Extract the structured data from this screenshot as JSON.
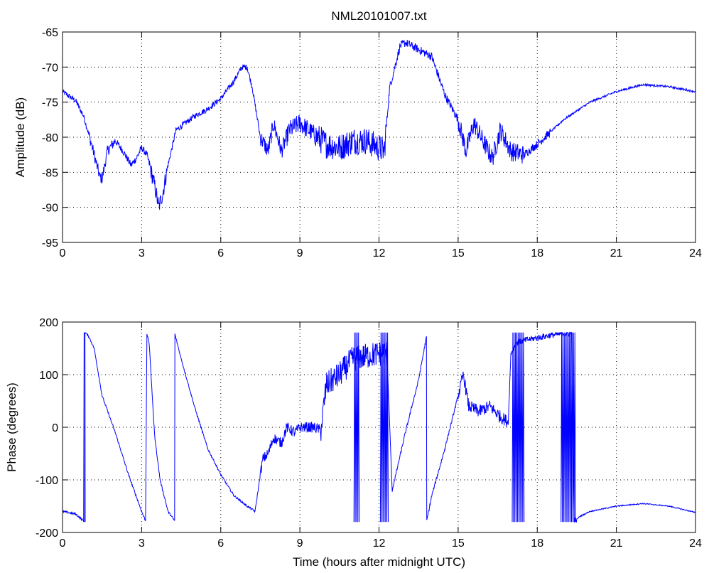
{
  "chart_data": [
    {
      "type": "line",
      "title": "NML20101007.txt",
      "xlabel": "",
      "ylabel": "Amplitude (dB)",
      "xlim": [
        0,
        24
      ],
      "ylim": [
        -95,
        -65
      ],
      "xticks": [
        0,
        3,
        6,
        9,
        12,
        15,
        18,
        21,
        24
      ],
      "yticks": [
        -95,
        -90,
        -85,
        -80,
        -75,
        -70,
        -65
      ],
      "grid": true,
      "color": "#0000ff",
      "noise": [
        [
          0,
          1,
          0.4
        ],
        [
          1,
          2,
          0.8
        ],
        [
          2,
          3.3,
          0.5
        ],
        [
          3.3,
          4,
          1.2
        ],
        [
          4,
          7.5,
          0.4
        ],
        [
          7.5,
          8.5,
          1.2
        ],
        [
          8.5,
          9.6,
          1.4
        ],
        [
          9.6,
          12.3,
          2.0
        ],
        [
          12.3,
          15,
          0.6
        ],
        [
          15,
          17.5,
          1.4
        ],
        [
          17.5,
          18.5,
          0.6
        ],
        [
          18.5,
          24,
          0.15
        ]
      ],
      "series": [
        {
          "x": [
            0,
            0.5,
            0.8,
            1.1,
            1.4,
            1.5,
            1.7,
            2.0,
            2.3,
            2.6,
            2.8,
            3.0,
            3.2,
            3.5,
            3.65,
            3.8,
            4.0,
            4.3,
            5.0,
            5.5,
            6.0,
            6.5,
            6.8,
            7.0,
            7.2,
            7.5,
            7.8,
            8.0,
            8.3,
            8.6,
            9.0,
            9.5,
            10.0,
            10.5,
            11.0,
            11.5,
            12.0,
            12.2,
            12.4,
            12.8,
            13.0,
            13.5,
            14.0,
            14.5,
            15.0,
            15.3,
            15.6,
            16.0,
            16.3,
            16.6,
            17.0,
            17.5,
            18.0,
            19.0,
            20.0,
            21.0,
            22.0,
            23.0,
            24.0
          ],
          "y": [
            -73.5,
            -74.8,
            -77,
            -81,
            -85.5,
            -86,
            -82,
            -80.5,
            -82,
            -84,
            -83,
            -81.5,
            -82.5,
            -87,
            -90,
            -88,
            -84,
            -79,
            -77,
            -76,
            -74.5,
            -72,
            -70,
            -70,
            -73,
            -80,
            -82,
            -78,
            -82,
            -79,
            -78,
            -79.5,
            -81,
            -81.5,
            -80.5,
            -80.5,
            -81.5,
            -82,
            -73,
            -67,
            -66.5,
            -67.5,
            -68.5,
            -74,
            -77.5,
            -82,
            -78,
            -81,
            -83,
            -79,
            -82,
            -82.5,
            -81,
            -77.5,
            -75,
            -73.5,
            -72.5,
            -72.8,
            -73.5
          ]
        }
      ]
    },
    {
      "type": "line",
      "title": "",
      "xlabel": "Time (hours after midnight UTC)",
      "ylabel": "Phase (degrees)",
      "xlim": [
        0,
        24
      ],
      "ylim": [
        -200,
        200
      ],
      "xticks": [
        0,
        3,
        6,
        9,
        12,
        15,
        18,
        21,
        24
      ],
      "yticks": [
        -200,
        -100,
        0,
        100,
        200
      ],
      "grid": true,
      "color": "#0000ff",
      "noise": [
        [
          0,
          7.5,
          2
        ],
        [
          7.5,
          9.8,
          10
        ],
        [
          9.8,
          12.3,
          25
        ],
        [
          12.3,
          15,
          3
        ],
        [
          15,
          16.9,
          12
        ],
        [
          16.9,
          19.5,
          6
        ],
        [
          19.5,
          24,
          1
        ]
      ],
      "series": [
        {
          "x": [
            0,
            0.5,
            0.8,
            0.82,
            0.83,
            0.9,
            1.0,
            1.2,
            1.5,
            2.0,
            2.5,
            3.0,
            3.15,
            3.2,
            3.25,
            3.3,
            3.4,
            3.5,
            3.7,
            4.0,
            4.25,
            4.26,
            4.27,
            4.5,
            5.0,
            5.5,
            6.0,
            6.5,
            7.0,
            7.3,
            7.5,
            7.6,
            7.8,
            8.0,
            8.3,
            8.5,
            8.8,
            9.0,
            9.5,
            9.8,
            10.0,
            10.5,
            11.0,
            11.5,
            12.0,
            12.3,
            12.5,
            13.0,
            13.5,
            13.8,
            13.81,
            14.0,
            14.5,
            15.0,
            15.2,
            15.4,
            15.8,
            16.2,
            16.6,
            16.9,
            17.0,
            17.2,
            17.5,
            18.0,
            18.5,
            19.0,
            19.3,
            19.4,
            19.5,
            19.6,
            20.0,
            21.0,
            22.0,
            23.0,
            24.0
          ],
          "y": [
            -160,
            -165,
            -178,
            178,
            180,
            178,
            172,
            150,
            60,
            -10,
            -90,
            -160,
            -178,
            178,
            170,
            150,
            60,
            -20,
            -100,
            -160,
            -178,
            178,
            175,
            130,
            40,
            -40,
            -90,
            -130,
            -150,
            -160,
            -90,
            -60,
            -50,
            -20,
            -30,
            0,
            -10,
            0,
            0,
            -5,
            80,
            100,
            130,
            135,
            140,
            142,
            -120,
            -10,
            90,
            172,
            -178,
            -130,
            -40,
            60,
            100,
            40,
            30,
            40,
            20,
            10,
            140,
            160,
            165,
            170,
            175,
            178,
            178,
            -178,
            -175,
            -170,
            -160,
            -150,
            -145,
            -150,
            -162
          ]
        }
      ],
      "wraps": [
        [
          0.84,
          0.86,
          -180,
          180
        ],
        [
          11.05,
          11.25,
          -180,
          180
        ],
        [
          12.05,
          12.35,
          -180,
          180
        ],
        [
          17.05,
          17.5,
          -180,
          180
        ],
        [
          18.9,
          19.45,
          -180,
          180
        ]
      ]
    }
  ]
}
